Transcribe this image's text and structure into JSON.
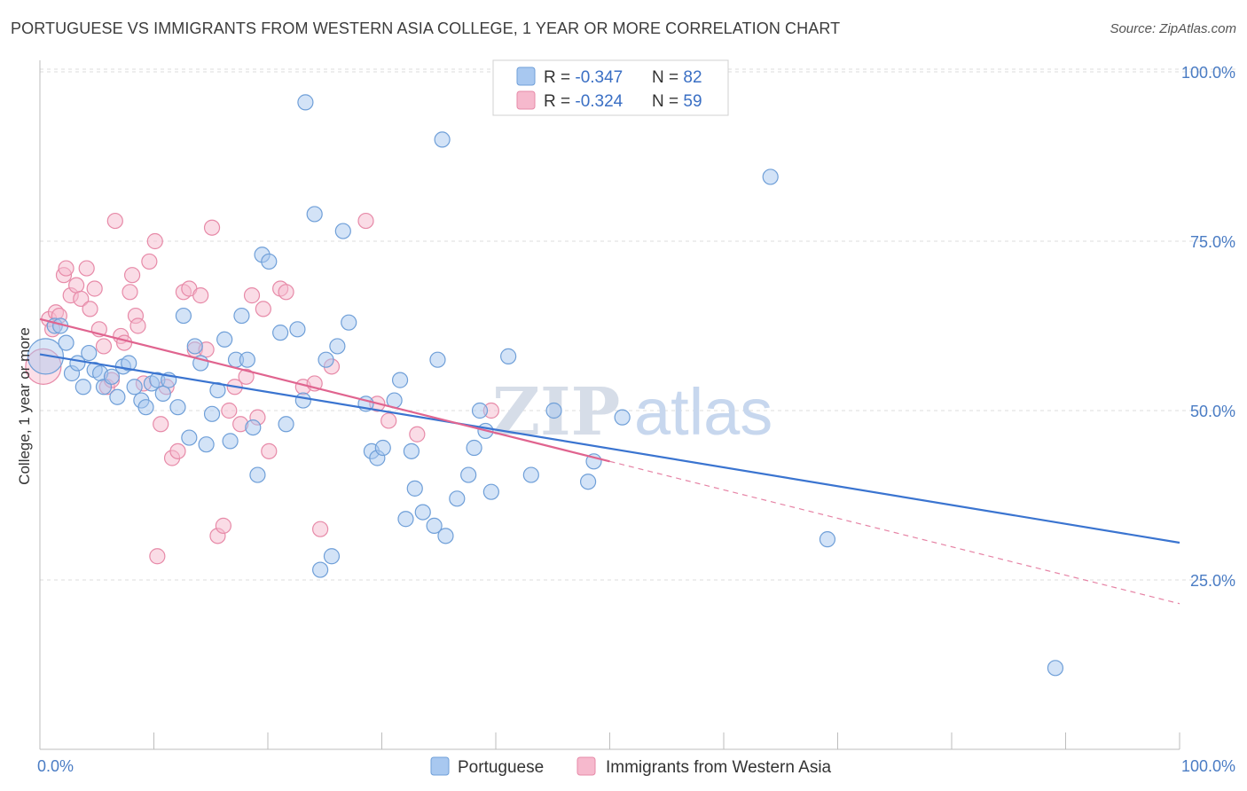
{
  "header": {
    "title": "PORTUGUESE VS IMMIGRANTS FROM WESTERN ASIA COLLEGE, 1 YEAR OR MORE CORRELATION CHART",
    "source": "Source: ZipAtlas.com"
  },
  "watermark": {
    "part1": "ZIP",
    "part2": "atlas"
  },
  "colors": {
    "blue_fill": "#a8c8f0",
    "blue_stroke": "#6f9fd8",
    "blue_line": "#3a74d0",
    "pink_fill": "#f6b9cd",
    "pink_stroke": "#e78aa8",
    "pink_line": "#e0648f",
    "grid": "#dcdcdc",
    "axis_label": "#4a7cc4"
  },
  "legend_top": {
    "rows": [
      {
        "r_label": "R = ",
        "r_value": "-0.347",
        "n_label": "N = ",
        "n_value": "82"
      },
      {
        "r_label": "R = ",
        "r_value": "-0.324",
        "n_label": "N = ",
        "n_value": "59"
      }
    ]
  },
  "chart_data": {
    "type": "scatter",
    "title": "PORTUGUESE VS IMMIGRANTS FROM WESTERN ASIA COLLEGE, 1 YEAR OR MORE CORRELATION CHART",
    "xlabel": "",
    "ylabel": "College, 1 year or more",
    "xlim": [
      0,
      100
    ],
    "ylim": [
      0,
      105
    ],
    "x_tick_labels": [
      "0.0%",
      "100.0%"
    ],
    "y_ticks": [
      25,
      50,
      75,
      100
    ],
    "y_tick_labels": [
      "25.0%",
      "50.0%",
      "75.0%",
      "100.0%"
    ],
    "grid": true,
    "legend_position": "bottom-center",
    "series": [
      {
        "name": "Portuguese",
        "color": "#a8c8f0",
        "trend": {
          "x": [
            0,
            100
          ],
          "y": [
            58.3,
            30.5
          ],
          "style": "solid"
        },
        "points": [
          [
            0.5,
            58
          ],
          [
            1.3,
            62.5
          ],
          [
            1.8,
            62.5
          ],
          [
            2.3,
            60
          ],
          [
            2.8,
            55.5
          ],
          [
            3.3,
            57
          ],
          [
            3.8,
            53.5
          ],
          [
            4.3,
            58.5
          ],
          [
            4.8,
            56
          ],
          [
            5.3,
            55.5
          ],
          [
            5.6,
            53.5
          ],
          [
            6.3,
            55
          ],
          [
            6.8,
            52
          ],
          [
            7.3,
            56.5
          ],
          [
            7.8,
            57
          ],
          [
            8.3,
            53.5
          ],
          [
            8.9,
            51.5
          ],
          [
            9.3,
            50.5
          ],
          [
            9.8,
            54
          ],
          [
            10.3,
            54.5
          ],
          [
            10.8,
            52.5
          ],
          [
            11.3,
            54.5
          ],
          [
            12.1,
            50.5
          ],
          [
            12.6,
            64
          ],
          [
            13.1,
            46
          ],
          [
            13.6,
            59.5
          ],
          [
            14.1,
            57
          ],
          [
            14.6,
            45
          ],
          [
            15.1,
            49.5
          ],
          [
            15.6,
            53
          ],
          [
            16.2,
            60.5
          ],
          [
            16.7,
            45.5
          ],
          [
            17.2,
            57.5
          ],
          [
            17.7,
            64
          ],
          [
            18.2,
            57.5
          ],
          [
            18.7,
            47.5
          ],
          [
            19.1,
            40.5
          ],
          [
            19.5,
            73
          ],
          [
            20.1,
            72
          ],
          [
            21.1,
            61.5
          ],
          [
            21.6,
            48
          ],
          [
            22.6,
            62
          ],
          [
            23.1,
            51.5
          ],
          [
            23.3,
            95.5
          ],
          [
            24.1,
            79
          ],
          [
            24.6,
            26.5
          ],
          [
            25.1,
            57.5
          ],
          [
            25.6,
            28.5
          ],
          [
            26.1,
            59.5
          ],
          [
            26.6,
            76.5
          ],
          [
            27.1,
            63
          ],
          [
            28.6,
            51
          ],
          [
            29.1,
            44
          ],
          [
            29.6,
            43
          ],
          [
            30.1,
            44.5
          ],
          [
            31.1,
            51.5
          ],
          [
            31.6,
            54.5
          ],
          [
            32.1,
            34
          ],
          [
            32.6,
            44
          ],
          [
            32.9,
            38.5
          ],
          [
            33.6,
            35
          ],
          [
            34.6,
            33
          ],
          [
            34.9,
            57.5
          ],
          [
            35.3,
            90
          ],
          [
            35.6,
            31.5
          ],
          [
            36.6,
            37
          ],
          [
            37.6,
            40.5
          ],
          [
            38.1,
            44.5
          ],
          [
            38.6,
            50
          ],
          [
            39.1,
            47
          ],
          [
            39.6,
            38
          ],
          [
            41.1,
            58
          ],
          [
            43.1,
            40.5
          ],
          [
            45.1,
            50
          ],
          [
            48.1,
            39.5
          ],
          [
            48.6,
            42.5
          ],
          [
            51.1,
            49
          ],
          [
            64.1,
            84.5
          ],
          [
            69.1,
            31
          ],
          [
            89.1,
            12
          ]
        ]
      },
      {
        "name": "Immigrants from Western Asia",
        "color": "#f6b9cd",
        "trend": {
          "x": [
            0,
            50
          ],
          "y": [
            63.5,
            42.5
          ],
          "style": "solid",
          "extension": {
            "x": [
              50,
              100
            ],
            "y": [
              42.5,
              21.5
            ],
            "style": "dashed"
          }
        },
        "points": [
          [
            0.3,
            56.5
          ],
          [
            0.8,
            63.5
          ],
          [
            1.1,
            62
          ],
          [
            1.4,
            64.5
          ],
          [
            1.7,
            64
          ],
          [
            2.1,
            70
          ],
          [
            2.3,
            71
          ],
          [
            2.7,
            67
          ],
          [
            3.2,
            68.5
          ],
          [
            3.6,
            66.5
          ],
          [
            4.1,
            71
          ],
          [
            4.4,
            65
          ],
          [
            4.8,
            68
          ],
          [
            5.2,
            62
          ],
          [
            5.6,
            59.5
          ],
          [
            5.9,
            53.5
          ],
          [
            6.3,
            54.5
          ],
          [
            6.6,
            78
          ],
          [
            7.1,
            61
          ],
          [
            7.4,
            60
          ],
          [
            7.9,
            67.5
          ],
          [
            8.1,
            70
          ],
          [
            8.4,
            64
          ],
          [
            8.6,
            62.5
          ],
          [
            9.1,
            54
          ],
          [
            9.6,
            72
          ],
          [
            10.1,
            75
          ],
          [
            10.3,
            28.5
          ],
          [
            10.6,
            48
          ],
          [
            11.1,
            53.5
          ],
          [
            11.6,
            43
          ],
          [
            12.1,
            44
          ],
          [
            12.6,
            67.5
          ],
          [
            13.1,
            68
          ],
          [
            13.6,
            59
          ],
          [
            14.1,
            67
          ],
          [
            14.6,
            59
          ],
          [
            15.1,
            77
          ],
          [
            15.6,
            31.5
          ],
          [
            16.1,
            33
          ],
          [
            16.6,
            50
          ],
          [
            17.1,
            53.5
          ],
          [
            17.6,
            48
          ],
          [
            18.1,
            55
          ],
          [
            18.6,
            67
          ],
          [
            19.1,
            49
          ],
          [
            19.6,
            65
          ],
          [
            20.1,
            44
          ],
          [
            21.1,
            68
          ],
          [
            21.6,
            67.5
          ],
          [
            23.1,
            53.5
          ],
          [
            24.1,
            54
          ],
          [
            24.6,
            32.5
          ],
          [
            25.6,
            56.5
          ],
          [
            28.6,
            78
          ],
          [
            29.6,
            51
          ],
          [
            30.6,
            48.5
          ],
          [
            33.1,
            46.5
          ],
          [
            39.6,
            50
          ]
        ]
      }
    ]
  },
  "legend_bottom": {
    "items": [
      {
        "label": "Portuguese"
      },
      {
        "label": "Immigrants from Western Asia"
      }
    ]
  }
}
